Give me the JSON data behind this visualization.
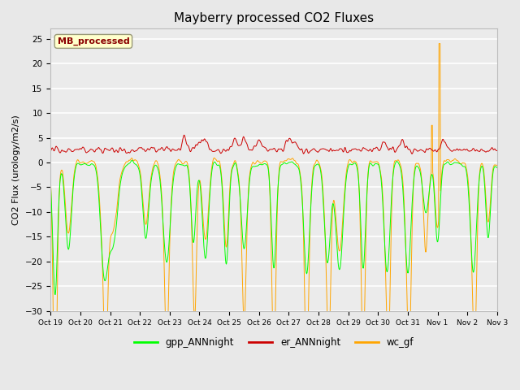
{
  "title": "Mayberry processed CO2 Fluxes",
  "ylabel": "CO2 Flux (urology/m2/s)",
  "ylim": [
    -30,
    27
  ],
  "yticks": [
    -30,
    -25,
    -20,
    -15,
    -10,
    -5,
    0,
    5,
    10,
    15,
    20,
    25
  ],
  "bg_color": "#e8e8e8",
  "plot_bg_color": "#ebebeb",
  "legend_labels": [
    "gpp_ANNnight",
    "er_ANNnight",
    "wc_gf"
  ],
  "legend_colors": [
    "#00ff00",
    "#cc0000",
    "#ffa500"
  ],
  "annotation_text": "MB_processed",
  "annotation_color": "#8b0000",
  "annotation_bg": "#ffffcc",
  "n_points": 1152,
  "seed": 42,
  "tick_labels": [
    "Oct 19",
    "Oct 20",
    "Oct 21",
    "Oct 22",
    "Oct 23",
    "Oct 24",
    "Oct 25",
    "Oct 26",
    "Oct 27",
    "Oct 28",
    "Oct 29",
    "Oct 30",
    "Oct 31",
    "Nov 1",
    "Nov 2",
    "Nov 3"
  ],
  "figsize": [
    6.4,
    4.8
  ],
  "dpi": 100
}
